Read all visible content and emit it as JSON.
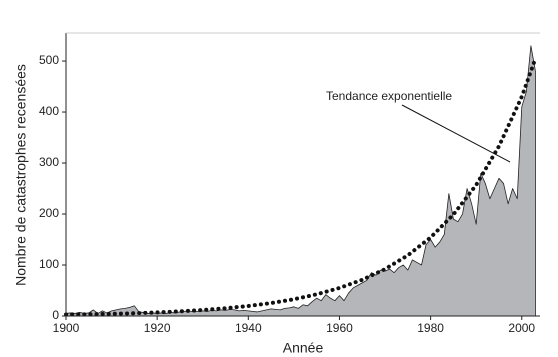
{
  "chart_data": {
    "type": "area",
    "x_label": "Année",
    "y_label": "Nombre de catastrophes recensées",
    "x": [
      1900,
      1901,
      1902,
      1903,
      1904,
      1905,
      1906,
      1907,
      1908,
      1909,
      1910,
      1911,
      1912,
      1913,
      1914,
      1915,
      1916,
      1917,
      1918,
      1919,
      1920,
      1921,
      1922,
      1923,
      1924,
      1925,
      1926,
      1927,
      1928,
      1929,
      1930,
      1931,
      1932,
      1933,
      1934,
      1935,
      1936,
      1937,
      1938,
      1939,
      1940,
      1941,
      1942,
      1943,
      1944,
      1945,
      1946,
      1947,
      1948,
      1949,
      1950,
      1951,
      1952,
      1953,
      1954,
      1955,
      1956,
      1957,
      1958,
      1959,
      1960,
      1961,
      1962,
      1963,
      1964,
      1965,
      1966,
      1967,
      1968,
      1969,
      1970,
      1971,
      1972,
      1973,
      1974,
      1975,
      1976,
      1977,
      1978,
      1979,
      1980,
      1981,
      1982,
      1983,
      1984,
      1985,
      1986,
      1987,
      1988,
      1989,
      1990,
      1991,
      1992,
      1993,
      1994,
      1995,
      1996,
      1997,
      1998,
      1999,
      2000,
      2001,
      2002,
      2003
    ],
    "series": [
      {
        "color": "#b4b6ba",
        "values": [
          5,
          6,
          5,
          7,
          5,
          6,
          12,
          5,
          10,
          6,
          10,
          12,
          14,
          15,
          17,
          20,
          8,
          7,
          5,
          6,
          5,
          6,
          5,
          7,
          6,
          8,
          9,
          10,
          8,
          9,
          10,
          9,
          11,
          10,
          12,
          11,
          13,
          12,
          10,
          11,
          10,
          9,
          8,
          10,
          12,
          14,
          13,
          12,
          15,
          16,
          18,
          15,
          22,
          20,
          28,
          35,
          30,
          42,
          35,
          30,
          40,
          30,
          45,
          55,
          60,
          65,
          70,
          85,
          80,
          90,
          88,
          92,
          85,
          95,
          100,
          90,
          110,
          105,
          100,
          140,
          150,
          135,
          145,
          160,
          240,
          190,
          185,
          200,
          250,
          220,
          180,
          280,
          260,
          230,
          250,
          270,
          260,
          220,
          250,
          230,
          410,
          440,
          530,
          480
        ]
      },
      {
        "name": "Tendance exponentielle",
        "color": "#111111",
        "style": "dotted",
        "x": [
          1900,
          1905,
          1910,
          1915,
          1920,
          1925,
          1930,
          1935,
          1940,
          1945,
          1950,
          1955,
          1960,
          1965,
          1970,
          1975,
          1980,
          1985,
          1990,
          1995,
          2000,
          2003
        ],
        "values": [
          3,
          3.3,
          4.2,
          5.4,
          7,
          9.1,
          11.7,
          15.2,
          19.6,
          25.4,
          32.8,
          42.5,
          55,
          71,
          92,
          119,
          154,
          199,
          257,
          333,
          430,
          505
        ]
      }
    ],
    "xlim": [
      1900,
      2004
    ],
    "ylim": [
      0,
      555
    ],
    "xticks": [
      1900,
      1920,
      1940,
      1960,
      1980,
      2000
    ],
    "yticks": [
      0,
      100,
      200,
      300,
      400,
      500
    ]
  }
}
